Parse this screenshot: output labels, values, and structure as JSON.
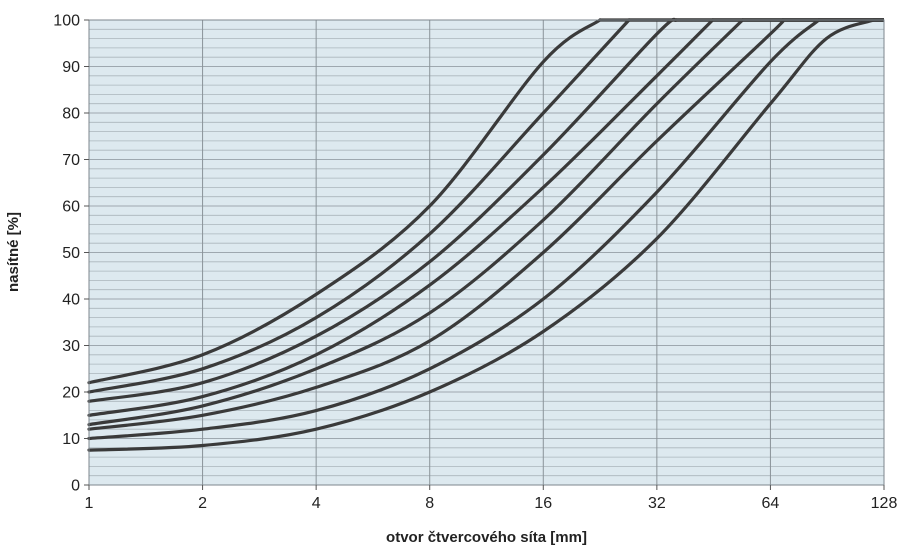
{
  "chart_data": {
    "type": "line",
    "title": "",
    "xlabel": "otvor čtvercového síta [mm]",
    "ylabel": "nasítné [%]",
    "x_scale": "log2",
    "xlim": [
      1,
      128
    ],
    "ylim": [
      0,
      100
    ],
    "x_ticks": [
      "1",
      "2",
      "4",
      "8",
      "16",
      "32",
      "64",
      "128"
    ],
    "y_ticks": [
      "0",
      "10",
      "20",
      "30",
      "40",
      "50",
      "60",
      "70",
      "80",
      "90",
      "100"
    ],
    "grid": "major x every octave, minor y every 2%",
    "colors": {
      "plot_bg": "#dde9ef",
      "grid": "#9aa4ab",
      "line": "#3a3a3a"
    },
    "series": [
      {
        "x": [
          1,
          2,
          4,
          8,
          16,
          22.6
        ],
        "y": [
          22,
          28,
          41,
          60,
          91,
          100
        ]
      },
      {
        "x": [
          1,
          2,
          4,
          8,
          16,
          27
        ],
        "y": [
          20,
          25,
          36,
          54,
          80,
          100
        ]
      },
      {
        "x": [
          1,
          2,
          4,
          8,
          16,
          32,
          36
        ],
        "y": [
          18,
          22,
          32,
          48,
          71,
          97,
          100
        ]
      },
      {
        "x": [
          1,
          2,
          4,
          8,
          16,
          32,
          45
        ],
        "y": [
          15,
          19,
          28,
          43,
          64,
          88,
          100
        ]
      },
      {
        "x": [
          1,
          2,
          4,
          8,
          16,
          32,
          54
        ],
        "y": [
          13,
          17,
          25,
          37,
          57,
          82,
          100
        ]
      },
      {
        "x": [
          1,
          2,
          4,
          8,
          16,
          32,
          64,
          69
        ],
        "y": [
          12,
          15,
          21,
          31,
          50,
          74,
          97,
          100
        ]
      },
      {
        "x": [
          1,
          2,
          4,
          8,
          16,
          32,
          64,
          86
        ],
        "y": [
          10,
          12,
          16,
          25,
          40,
          63,
          91,
          100
        ]
      },
      {
        "x": [
          1,
          2,
          4,
          8,
          16,
          32,
          64,
          90,
          120
        ],
        "y": [
          7.5,
          8.5,
          12,
          20,
          33,
          53,
          82,
          96,
          100
        ]
      }
    ]
  }
}
